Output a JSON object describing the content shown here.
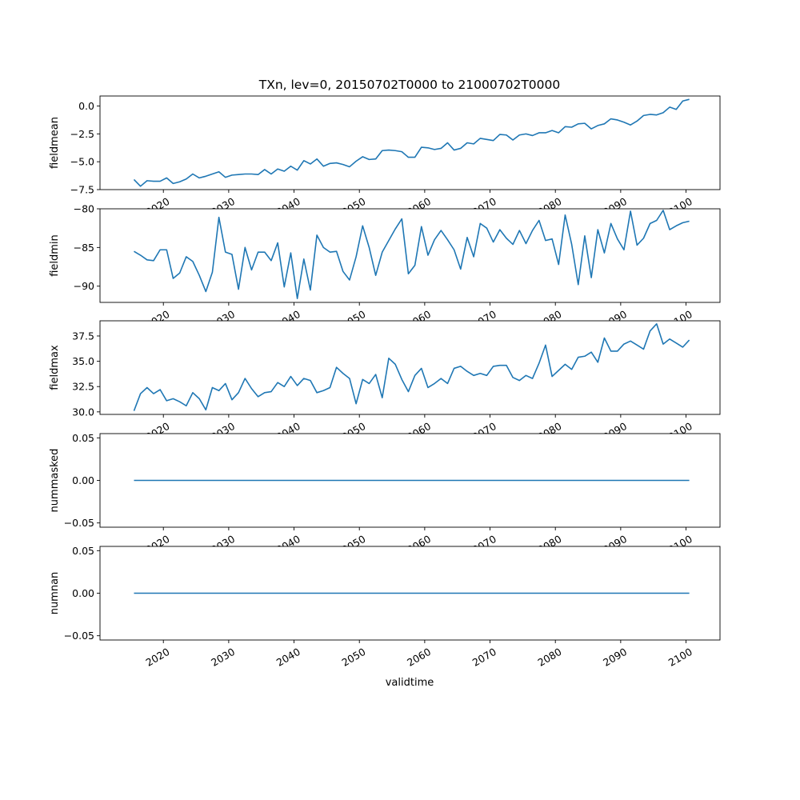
{
  "chart_data": {
    "title": "TXn, lev=0, 20150702T0000 to 21000702T0000",
    "type": "line",
    "xlabel": "validtime",
    "x_unit": "year",
    "xlim": [
      2010.3,
      2105.2
    ],
    "x_ticks": [
      2020,
      2030,
      2040,
      2050,
      2060,
      2070,
      2080,
      2090,
      2100
    ],
    "x_tick_labels": [
      "2020",
      "2030",
      "2040",
      "2050",
      "2060",
      "2070",
      "2080",
      "2090",
      "2100"
    ],
    "x_start": 2015.5,
    "x_step": 1,
    "line_color": "#1f77b4",
    "panels": [
      {
        "ylabel": "fieldmean",
        "ylim": [
          -7.5,
          0.9
        ],
        "y_ticks": [
          0.0,
          -2.5,
          -5.0,
          -7.5
        ],
        "y_tick_labels": [
          "0.0",
          "−2.5",
          "−5.0",
          "−7.5"
        ],
        "values": [
          -6.6,
          -7.2,
          -6.7,
          -6.75,
          -6.75,
          -6.45,
          -6.95,
          -6.8,
          -6.55,
          -6.1,
          -6.45,
          -6.3,
          -6.1,
          -5.9,
          -6.4,
          -6.2,
          -6.15,
          -6.1,
          -6.1,
          -6.15,
          -5.7,
          -6.1,
          -5.65,
          -5.85,
          -5.4,
          -5.75,
          -4.9,
          -5.2,
          -4.75,
          -5.4,
          -5.15,
          -5.1,
          -5.25,
          -5.45,
          -4.95,
          -4.55,
          -4.8,
          -4.75,
          -4.0,
          -3.95,
          -4.0,
          -4.1,
          -4.6,
          -4.6,
          -3.7,
          -3.75,
          -3.9,
          -3.8,
          -3.3,
          -3.95,
          -3.8,
          -3.3,
          -3.4,
          -2.9,
          -3.0,
          -3.1,
          -2.55,
          -2.6,
          -3.05,
          -2.6,
          -2.5,
          -2.65,
          -2.4,
          -2.4,
          -2.2,
          -2.4,
          -1.85,
          -1.9,
          -1.6,
          -1.55,
          -2.05,
          -1.75,
          -1.6,
          -1.15,
          -1.25,
          -1.45,
          -1.7,
          -1.35,
          -0.85,
          -0.75,
          -0.8,
          -0.6,
          -0.1,
          -0.3,
          0.45,
          0.6
        ]
      },
      {
        "ylabel": "fieldmin",
        "ylim": [
          -92.1,
          -80.0
        ],
        "y_ticks": [
          -80,
          -85,
          -90
        ],
        "y_tick_labels": [
          "−80",
          "−85",
          "−90"
        ],
        "values": [
          -85.5,
          -86.0,
          -86.6,
          -86.7,
          -85.3,
          -85.3,
          -89.0,
          -88.3,
          -86.2,
          -86.8,
          -88.6,
          -90.7,
          -88.2,
          -81.1,
          -85.6,
          -85.9,
          -90.4,
          -85.0,
          -87.9,
          -85.6,
          -85.6,
          -86.7,
          -84.4,
          -90.1,
          -85.7,
          -91.6,
          -86.5,
          -90.5,
          -83.4,
          -85.0,
          -85.6,
          -85.5,
          -88.1,
          -89.2,
          -86.2,
          -82.2,
          -85.0,
          -88.6,
          -85.6,
          -84.1,
          -82.6,
          -81.3,
          -88.4,
          -87.3,
          -82.3,
          -86.0,
          -84.0,
          -82.8,
          -84.0,
          -85.3,
          -87.8,
          -83.7,
          -86.2,
          -81.9,
          -82.5,
          -84.3,
          -82.7,
          -83.8,
          -84.6,
          -82.8,
          -84.5,
          -82.8,
          -81.5,
          -84.1,
          -83.9,
          -87.2,
          -80.8,
          -84.6,
          -89.8,
          -83.5,
          -88.9,
          -82.7,
          -85.7,
          -81.9,
          -83.9,
          -85.3,
          -80.3,
          -84.7,
          -83.8,
          -81.9,
          -81.5,
          -80.2,
          -82.7,
          -82.2,
          -81.8,
          -81.6
        ]
      },
      {
        "ylabel": "fieldmax",
        "ylim": [
          29.75,
          39.0
        ],
        "y_ticks": [
          30.0,
          32.5,
          35.0,
          37.5
        ],
        "y_tick_labels": [
          "30.0",
          "32.5",
          "35.0",
          "37.5"
        ],
        "values": [
          30.1,
          31.8,
          32.4,
          31.8,
          32.2,
          31.1,
          31.3,
          31.0,
          30.6,
          31.9,
          31.3,
          30.2,
          32.4,
          32.1,
          32.8,
          31.2,
          31.9,
          33.3,
          32.3,
          31.5,
          31.9,
          32.0,
          32.9,
          32.5,
          33.5,
          32.6,
          33.3,
          33.1,
          31.9,
          32.1,
          32.4,
          34.4,
          33.8,
          33.3,
          30.8,
          33.2,
          32.8,
          33.7,
          31.4,
          35.3,
          34.7,
          33.2,
          32.0,
          33.6,
          34.3,
          32.4,
          32.8,
          33.3,
          32.8,
          34.3,
          34.5,
          34.0,
          33.6,
          33.8,
          33.6,
          34.5,
          34.6,
          34.6,
          33.4,
          33.1,
          33.6,
          33.3,
          34.8,
          36.6,
          33.5,
          34.1,
          34.7,
          34.2,
          35.4,
          35.5,
          35.9,
          34.9,
          37.3,
          36.0,
          36.0,
          36.7,
          37.0,
          36.6,
          36.2,
          38.0,
          38.7,
          36.7,
          37.2,
          36.8,
          36.4,
          37.1
        ]
      },
      {
        "ylabel": "nummasked",
        "ylim": [
          -0.055,
          0.055
        ],
        "y_ticks": [
          0.05,
          0.0,
          -0.05
        ],
        "y_tick_labels": [
          "0.05",
          "0.00",
          "−0.05"
        ],
        "values": [
          0,
          0
        ]
      },
      {
        "ylabel": "numnan",
        "ylim": [
          -0.055,
          0.055
        ],
        "y_ticks": [
          0.05,
          0.0,
          -0.05
        ],
        "y_tick_labels": [
          "0.05",
          "0.00",
          "−0.05"
        ],
        "values": [
          0,
          0
        ]
      }
    ]
  }
}
